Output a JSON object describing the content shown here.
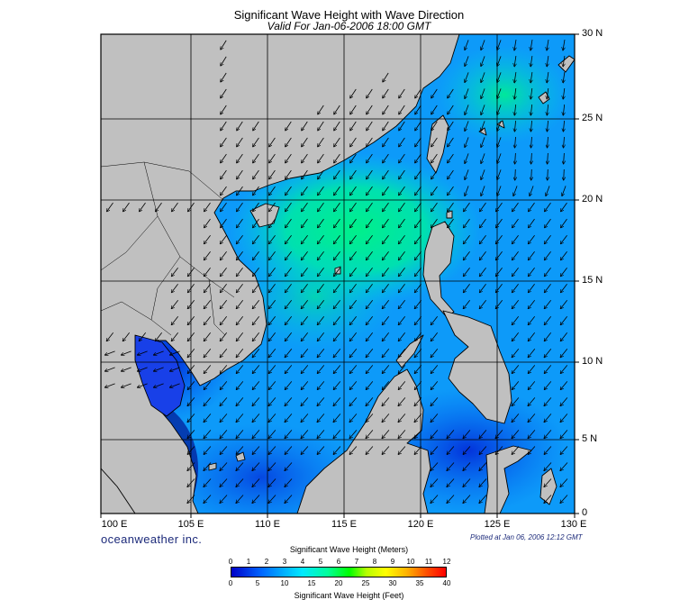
{
  "title": "Significant Wave Height with Wave Direction",
  "subtitle": "Valid For Jan-06-2006 18:00 GMT",
  "map": {
    "longitude_labels": [
      "100 E",
      "105 E",
      "110 E",
      "115 E",
      "120 E",
      "125 E",
      "130 E"
    ],
    "latitude_labels": [
      "30 N",
      "25 N",
      "20 N",
      "15 N",
      "10 N",
      "5 N",
      "0"
    ],
    "colors": {
      "land": "#c0c0c0",
      "coast": "#000000",
      "grid": "#000000",
      "arrow": "#000000",
      "wave_low": "#0000c8",
      "wave_mid": "#00a8ff",
      "wave_high": "#00ff80"
    },
    "dominant_wave_direction": "northeast to southwest"
  },
  "brand": "oceanweather inc.",
  "plotted_at": "Plotted at Jan 06, 2006 12:12 GMT",
  "legend": {
    "title_meters": "Significant Wave Height (Meters)",
    "title_feet": "Significant Wave Height (Feet)",
    "meters_ticks": [
      "0",
      "1",
      "2",
      "3",
      "4",
      "5",
      "6",
      "7",
      "8",
      "9",
      "10",
      "11",
      "12"
    ],
    "feet_ticks": [
      "0",
      "5",
      "10",
      "15",
      "20",
      "25",
      "30",
      "35",
      "40"
    ],
    "colors": [
      "#0000c8",
      "#0066ff",
      "#00b4ff",
      "#00e8ff",
      "#00ff9a",
      "#00ff00",
      "#b6ff00",
      "#ffff00",
      "#ffb000",
      "#ff5000",
      "#ff0000"
    ]
  }
}
